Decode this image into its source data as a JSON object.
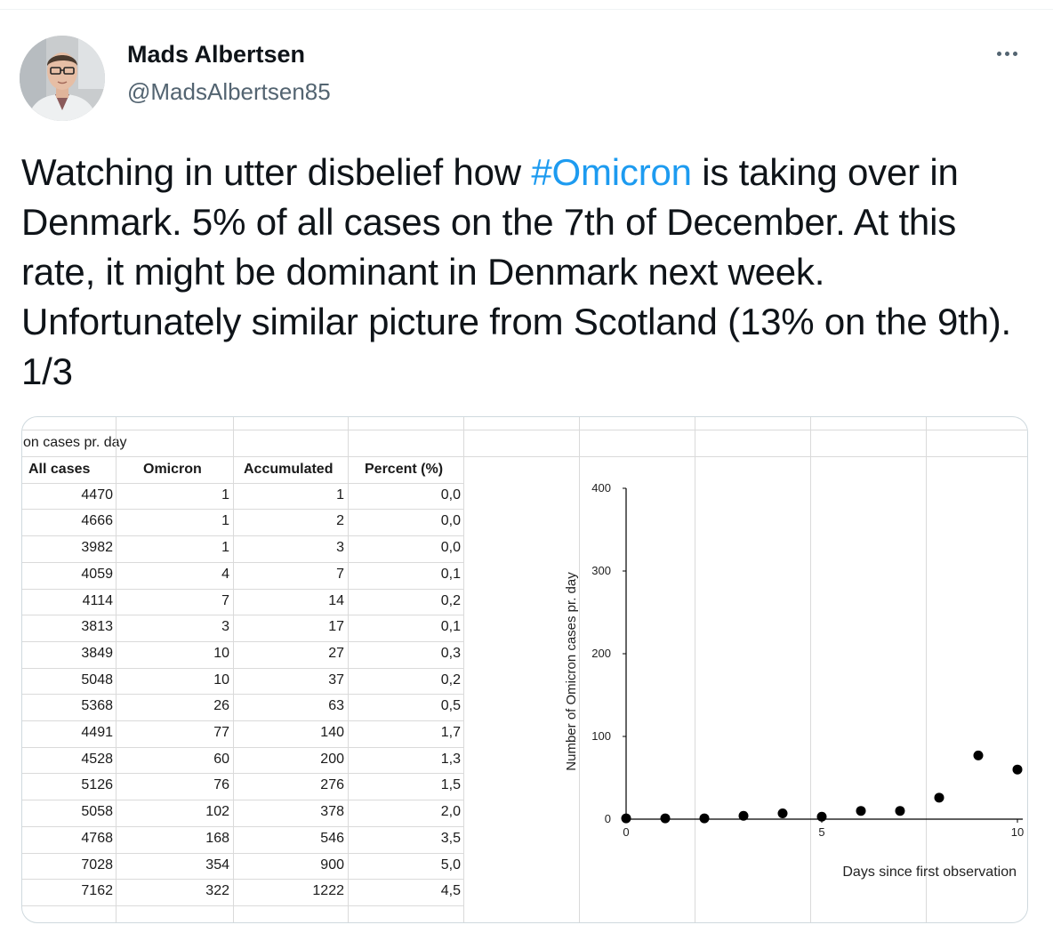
{
  "author": {
    "name": "Mads Albertsen",
    "handle": "@MadsAlbertsen85"
  },
  "tweet": {
    "text_part1": "Watching in utter disbelief how ",
    "hashtag": "#Omicron",
    "text_part2": " is taking over in Denmark. 5% of all cases on the 7th of December. At this rate, it might be dominant in Denmark next week. Unfortunately similar picture from Scotland (13% on the 9th). 1/3",
    "link_color": "#1d9bf0"
  },
  "icons": {
    "more": "more-horizontal-icon"
  },
  "table": {
    "title": "on cases pr. day",
    "headers": [
      "All cases",
      "Omicron",
      "Accumulated",
      "Percent (%)"
    ],
    "rows": [
      [
        "4470",
        "1",
        "1",
        "0,0"
      ],
      [
        "4666",
        "1",
        "2",
        "0,0"
      ],
      [
        "3982",
        "1",
        "3",
        "0,0"
      ],
      [
        "4059",
        "4",
        "7",
        "0,1"
      ],
      [
        "4114",
        "7",
        "14",
        "0,2"
      ],
      [
        "3813",
        "3",
        "17",
        "0,1"
      ],
      [
        "3849",
        "10",
        "27",
        "0,3"
      ],
      [
        "5048",
        "10",
        "37",
        "0,2"
      ],
      [
        "5368",
        "26",
        "63",
        "0,5"
      ],
      [
        "4491",
        "77",
        "140",
        "1,7"
      ],
      [
        "4528",
        "60",
        "200",
        "1,3"
      ],
      [
        "5126",
        "76",
        "276",
        "1,5"
      ],
      [
        "5058",
        "102",
        "378",
        "2,0"
      ],
      [
        "4768",
        "168",
        "546",
        "3,5"
      ],
      [
        "7028",
        "354",
        "900",
        "5,0"
      ],
      [
        "7162",
        "322",
        "1222",
        "4,5"
      ]
    ]
  },
  "chart_data": {
    "type": "scatter",
    "title": "",
    "xlabel": "Days since first observation",
    "ylabel": "Number of Omicron cases pr. day",
    "xlim": [
      0,
      10
    ],
    "ylim": [
      0,
      400
    ],
    "xticks": [
      "0",
      "5",
      "10"
    ],
    "yticks": [
      "0",
      "100",
      "200",
      "300",
      "400"
    ],
    "grid": false,
    "legend": "none",
    "marker_color": "#000000",
    "series": [
      {
        "x": [
          0,
          1,
          2,
          3,
          4,
          5,
          6,
          7,
          8,
          9,
          10
        ],
        "y": [
          1,
          1,
          1,
          4,
          7,
          3,
          10,
          10,
          26,
          77,
          60
        ]
      }
    ]
  }
}
